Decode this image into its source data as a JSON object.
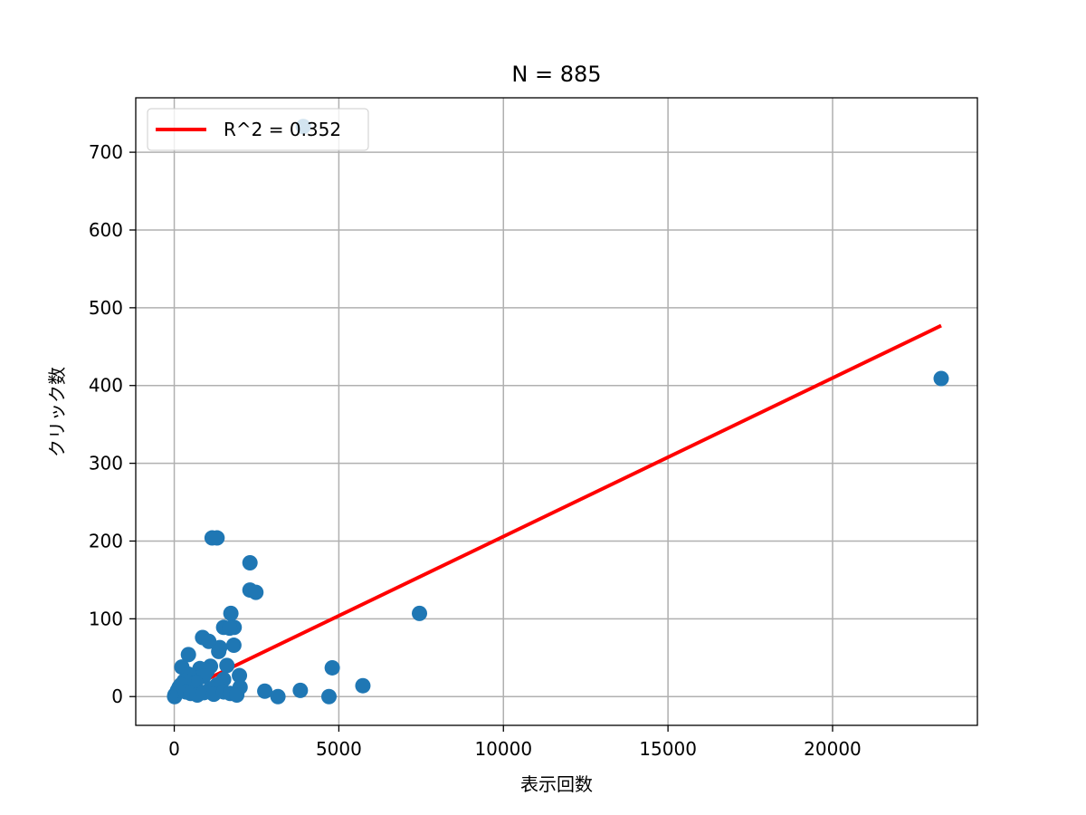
{
  "chart_data": {
    "type": "scatter",
    "title": "N = 885",
    "xlabel": "表示回数",
    "ylabel": "クリック数",
    "xlim": [
      -1170,
      24400
    ],
    "ylim": [
      -37,
      770
    ],
    "xticks": [
      0,
      5000,
      10000,
      15000,
      20000
    ],
    "yticks": [
      0,
      100,
      200,
      300,
      400,
      500,
      600,
      700
    ],
    "grid": true,
    "legend_position": "top-left",
    "colors": {
      "points": "#1f77b4",
      "fit": "#ff0000",
      "grid": "#b0b0b0"
    },
    "series": [
      {
        "name": "",
        "kind": "scatter",
        "points": [
          [
            3920,
            733
          ],
          [
            1150,
            204
          ],
          [
            1300,
            204
          ],
          [
            2300,
            172
          ],
          [
            2300,
            137
          ],
          [
            2480,
            134
          ],
          [
            1720,
            107
          ],
          [
            1500,
            89
          ],
          [
            1820,
            89
          ],
          [
            1680,
            88
          ],
          [
            860,
            76
          ],
          [
            1050,
            71
          ],
          [
            1810,
            66
          ],
          [
            1380,
            63
          ],
          [
            1350,
            58
          ],
          [
            430,
            54
          ],
          [
            1100,
            39
          ],
          [
            1600,
            40
          ],
          [
            230,
            38
          ],
          [
            780,
            36
          ],
          [
            1000,
            33
          ],
          [
            1980,
            27
          ],
          [
            1500,
            22
          ],
          [
            690,
            24
          ],
          [
            900,
            26
          ],
          [
            420,
            29
          ],
          [
            2000,
            12
          ],
          [
            1300,
            15
          ],
          [
            1100,
            10
          ],
          [
            650,
            18
          ],
          [
            300,
            20
          ],
          [
            150,
            12
          ],
          [
            60,
            4
          ],
          [
            20,
            2
          ],
          [
            10,
            0
          ],
          [
            100,
            8
          ],
          [
            200,
            15
          ],
          [
            350,
            6
          ],
          [
            500,
            4
          ],
          [
            700,
            2
          ],
          [
            900,
            5
          ],
          [
            1200,
            3
          ],
          [
            1500,
            6
          ],
          [
            1700,
            4
          ],
          [
            1900,
            2
          ],
          [
            2750,
            7
          ],
          [
            3150,
            0
          ],
          [
            3830,
            8
          ],
          [
            4700,
            0
          ],
          [
            4800,
            37
          ],
          [
            5730,
            14
          ],
          [
            7450,
            107
          ],
          [
            23300,
            409
          ]
        ]
      },
      {
        "name": "R^2 = 0.352",
        "kind": "line",
        "points": [
          [
            0,
            2
          ],
          [
            23300,
            477
          ]
        ]
      }
    ]
  }
}
